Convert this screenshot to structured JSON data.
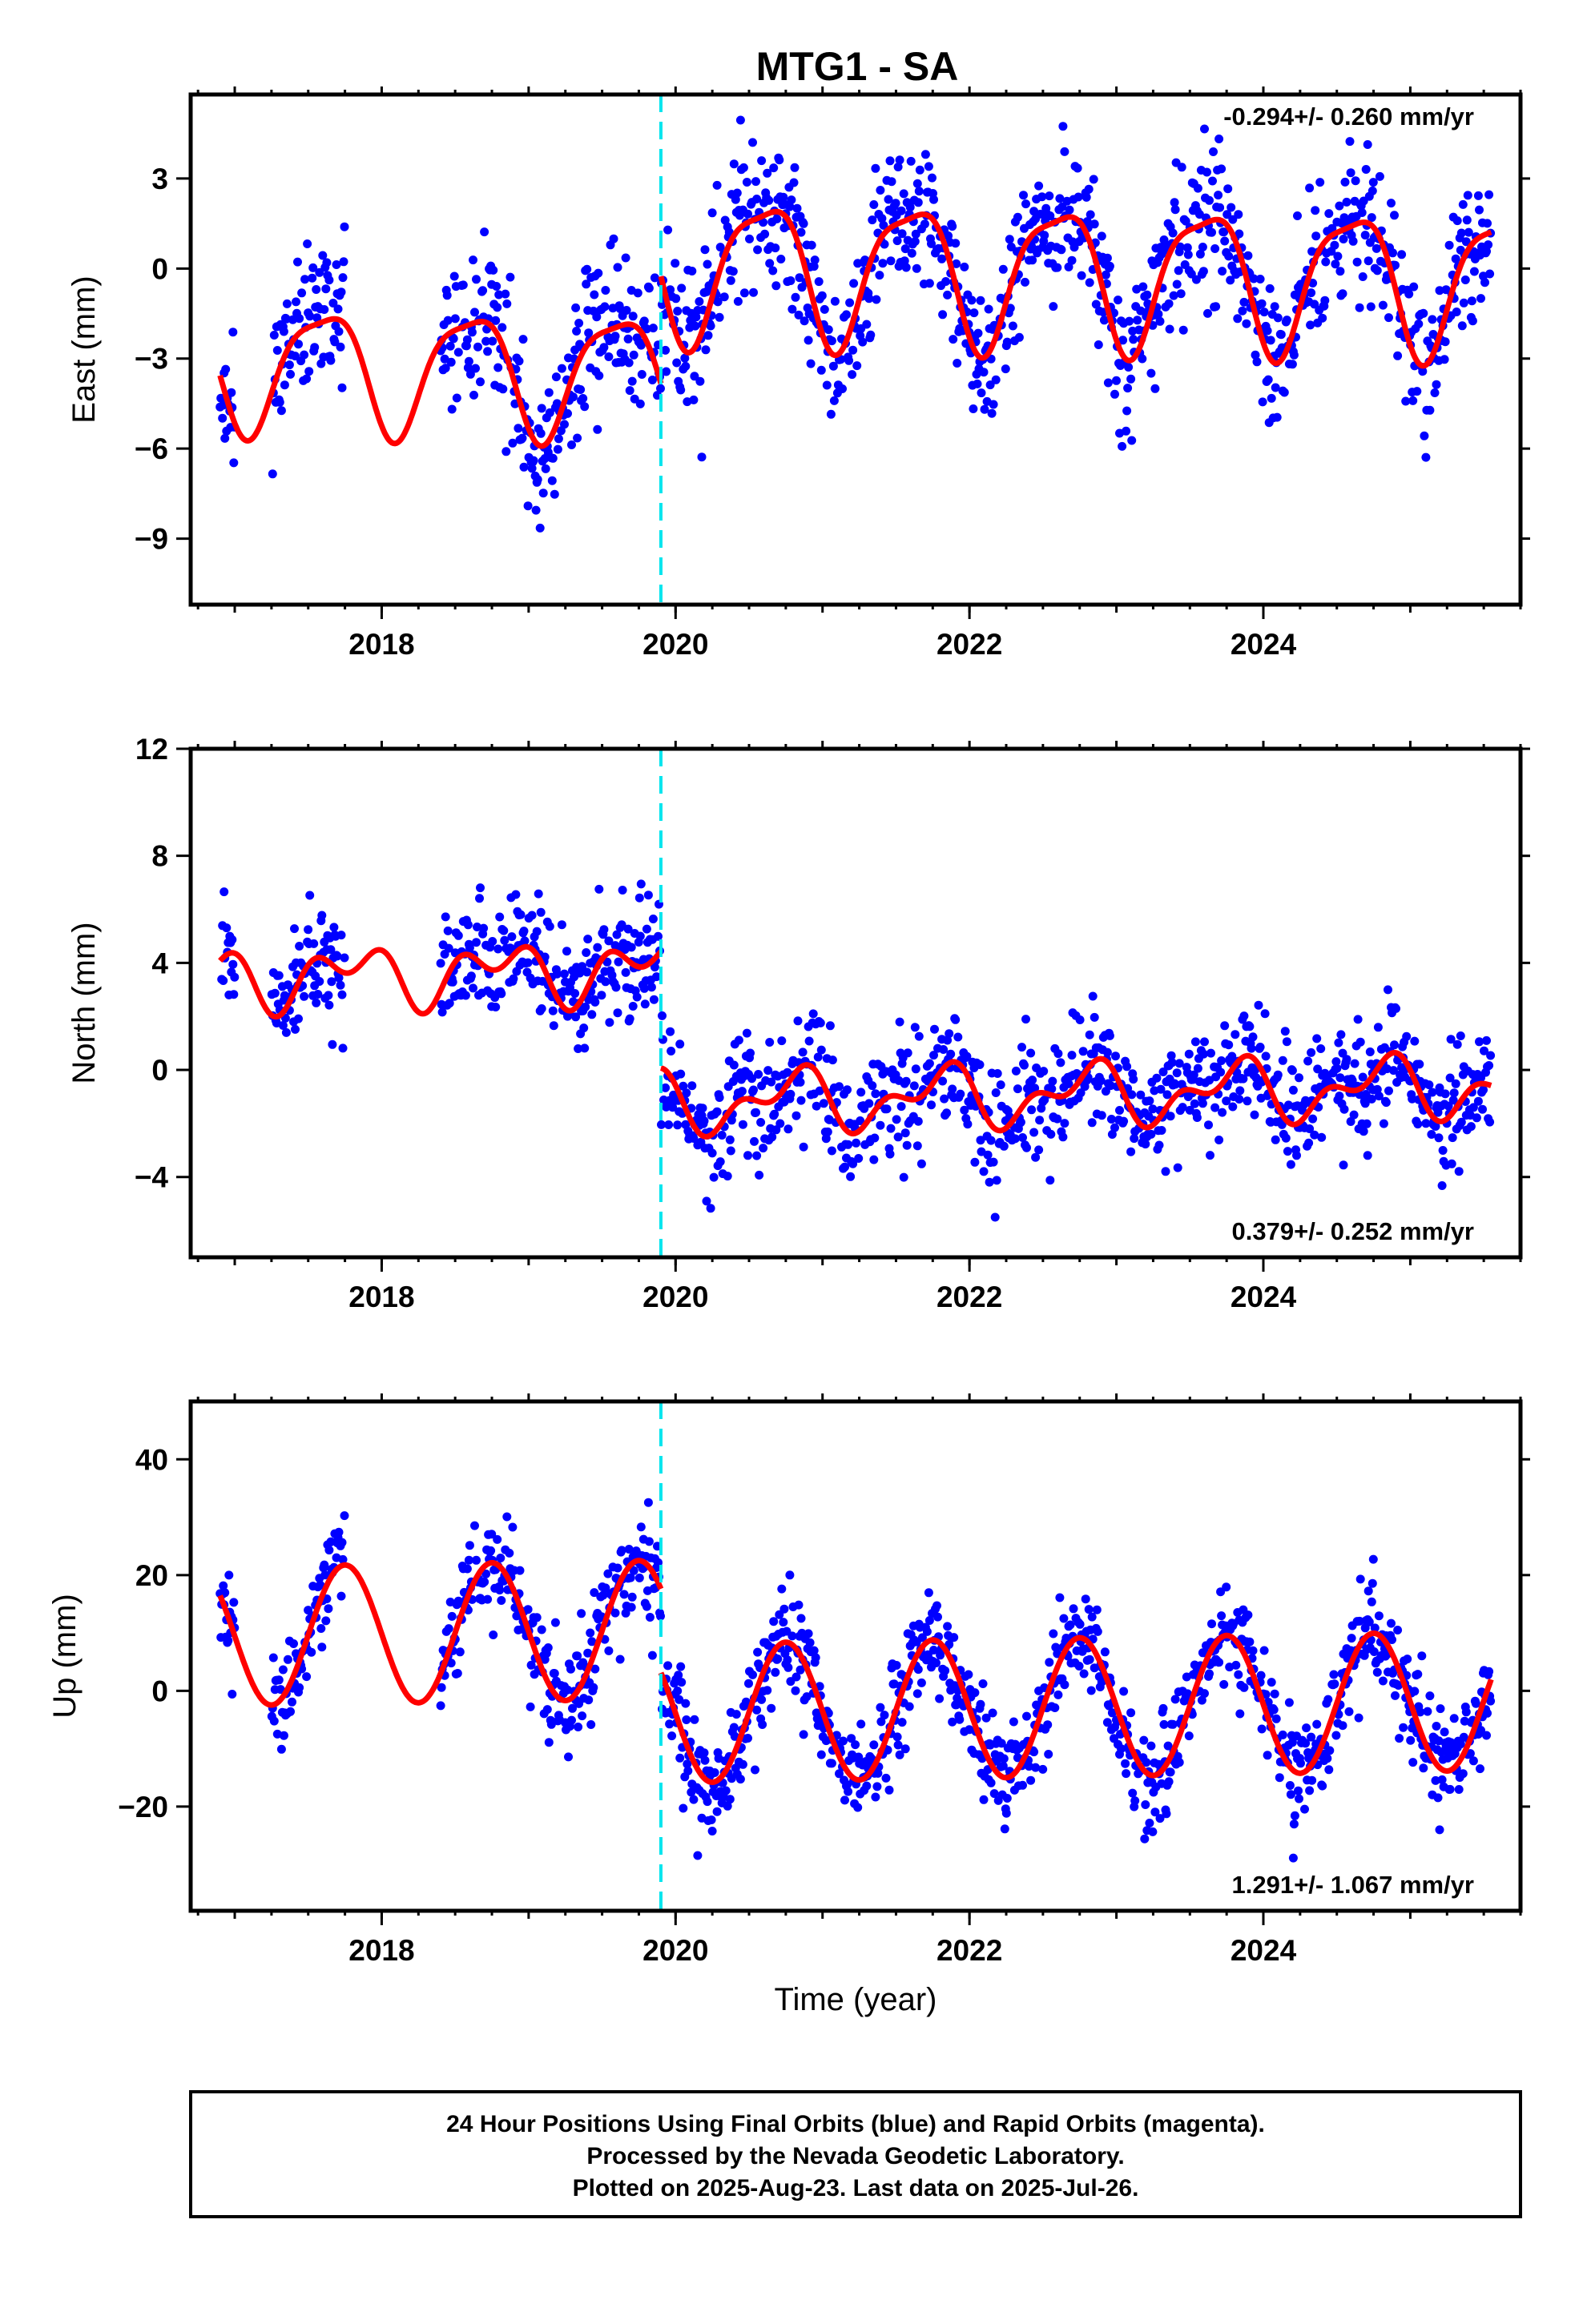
{
  "title": "MTG1 - SA",
  "footer": {
    "lines": [
      "24 Hour Positions Using Final Orbits (blue) and Rapid Orbits (magenta).",
      "Processed by the Nevada Geodetic Laboratory.",
      "Plotted on 2025-Aug-23. Last data on 2025-Jul-26."
    ]
  },
  "colors": {
    "points": "#0000ff",
    "fit": "#ff0000",
    "offset_marker": "#00e5ee",
    "frame": "#000000"
  },
  "chart_data": [
    {
      "type": "scatter",
      "ylabel": "East (mm)",
      "xlabel": "",
      "xlim": [
        2016.7,
        2025.75
      ],
      "ylim": [
        -11.2,
        5.8
      ],
      "xticks": [
        2018,
        2020,
        2022,
        2024
      ],
      "xtick_labels": [
        "2018",
        "2020",
        "2022",
        "2024"
      ],
      "yticks": [
        -9,
        -6,
        -3,
        0,
        3
      ],
      "ytick_labels": [
        "−9",
        "−6",
        "−3",
        "0",
        "3"
      ],
      "rate_label": "-0.294+/- 0.260 mm/yr",
      "rate_position": "top-right",
      "offset_epoch": 2019.9,
      "model": {
        "segments": [
          {
            "start": 2016.9,
            "end": 2019.9,
            "base": -3.6,
            "ann": 2.0,
            "phase": 2017.35,
            "semi": 0.5,
            "semi_phase": 2017.2
          },
          {
            "start": 2019.9,
            "end": 2025.55,
            "base": 0.0,
            "ann": 2.3,
            "phase": 2020.35,
            "semi": 0.6,
            "semi_phase": 2020.2
          }
        ],
        "trend": -0.294,
        "trend_ref": 2021.0
      },
      "scatter": {
        "sigma": 1.2,
        "seed": 11,
        "gaps": [
          [
            2017.0,
            2017.25
          ],
          [
            2017.75,
            2018.4
          ]
        ]
      }
    },
    {
      "type": "scatter",
      "ylabel": "North (mm)",
      "xlabel": "",
      "xlim": [
        2016.7,
        2025.75
      ],
      "ylim": [
        -7,
        12
      ],
      "xticks": [
        2018,
        2020,
        2022,
        2024
      ],
      "xtick_labels": [
        "2018",
        "2020",
        "2022",
        "2024"
      ],
      "yticks": [
        -4,
        0,
        4,
        8,
        12
      ],
      "ytick_labels": [
        "−4",
        "0",
        "4",
        "8",
        "12"
      ],
      "rate_label": "0.379+/- 0.252 mm/yr",
      "rate_position": "bottom-right",
      "offset_epoch": 2019.9,
      "model": {
        "segments": [
          {
            "start": 2016.9,
            "end": 2019.9,
            "base": 3.9,
            "ann": 0.8,
            "phase": 2017.55,
            "semi": 0.7,
            "semi_phase": 2017.4
          },
          {
            "start": 2019.9,
            "end": 2025.55,
            "base": -1.1,
            "ann": 0.9,
            "phase": 2020.55,
            "semi": 0.6,
            "semi_phase": 2020.3
          }
        ],
        "trend": 0.379,
        "trend_ref": 2021.0
      },
      "scatter": {
        "sigma": 1.1,
        "seed": 23,
        "gaps": [
          [
            2017.0,
            2017.25
          ],
          [
            2017.75,
            2018.4
          ]
        ]
      }
    },
    {
      "type": "scatter",
      "ylabel": "Up (mm)",
      "xlabel": "Time (year)",
      "xlim": [
        2016.7,
        2025.75
      ],
      "ylim": [
        -38,
        50
      ],
      "xticks": [
        2018,
        2020,
        2022,
        2024
      ],
      "xtick_labels": [
        "2018",
        "2020",
        "2022",
        "2024"
      ],
      "yticks": [
        -20,
        0,
        20,
        40
      ],
      "ytick_labels": [
        "−20",
        "0",
        "20",
        "40"
      ],
      "rate_label": "1.291+/- 1.067 mm/yr",
      "rate_position": "bottom-right",
      "offset_epoch": 2019.9,
      "model": {
        "segments": [
          {
            "start": 2016.9,
            "end": 2019.9,
            "base": 11.0,
            "ann": 12.0,
            "phase": 2017.5,
            "semi": 0.0,
            "semi_phase": 2017.0
          },
          {
            "start": 2019.9,
            "end": 2025.55,
            "base": -3.5,
            "ann": 12.0,
            "phase": 2020.5,
            "semi": 0.0,
            "semi_phase": 2020.0
          }
        ],
        "trend": 1.291,
        "trend_ref": 2021.0
      },
      "scatter": {
        "sigma": 4.5,
        "seed": 37,
        "gaps": [
          [
            2017.0,
            2017.25
          ],
          [
            2017.75,
            2018.4
          ]
        ]
      }
    }
  ]
}
